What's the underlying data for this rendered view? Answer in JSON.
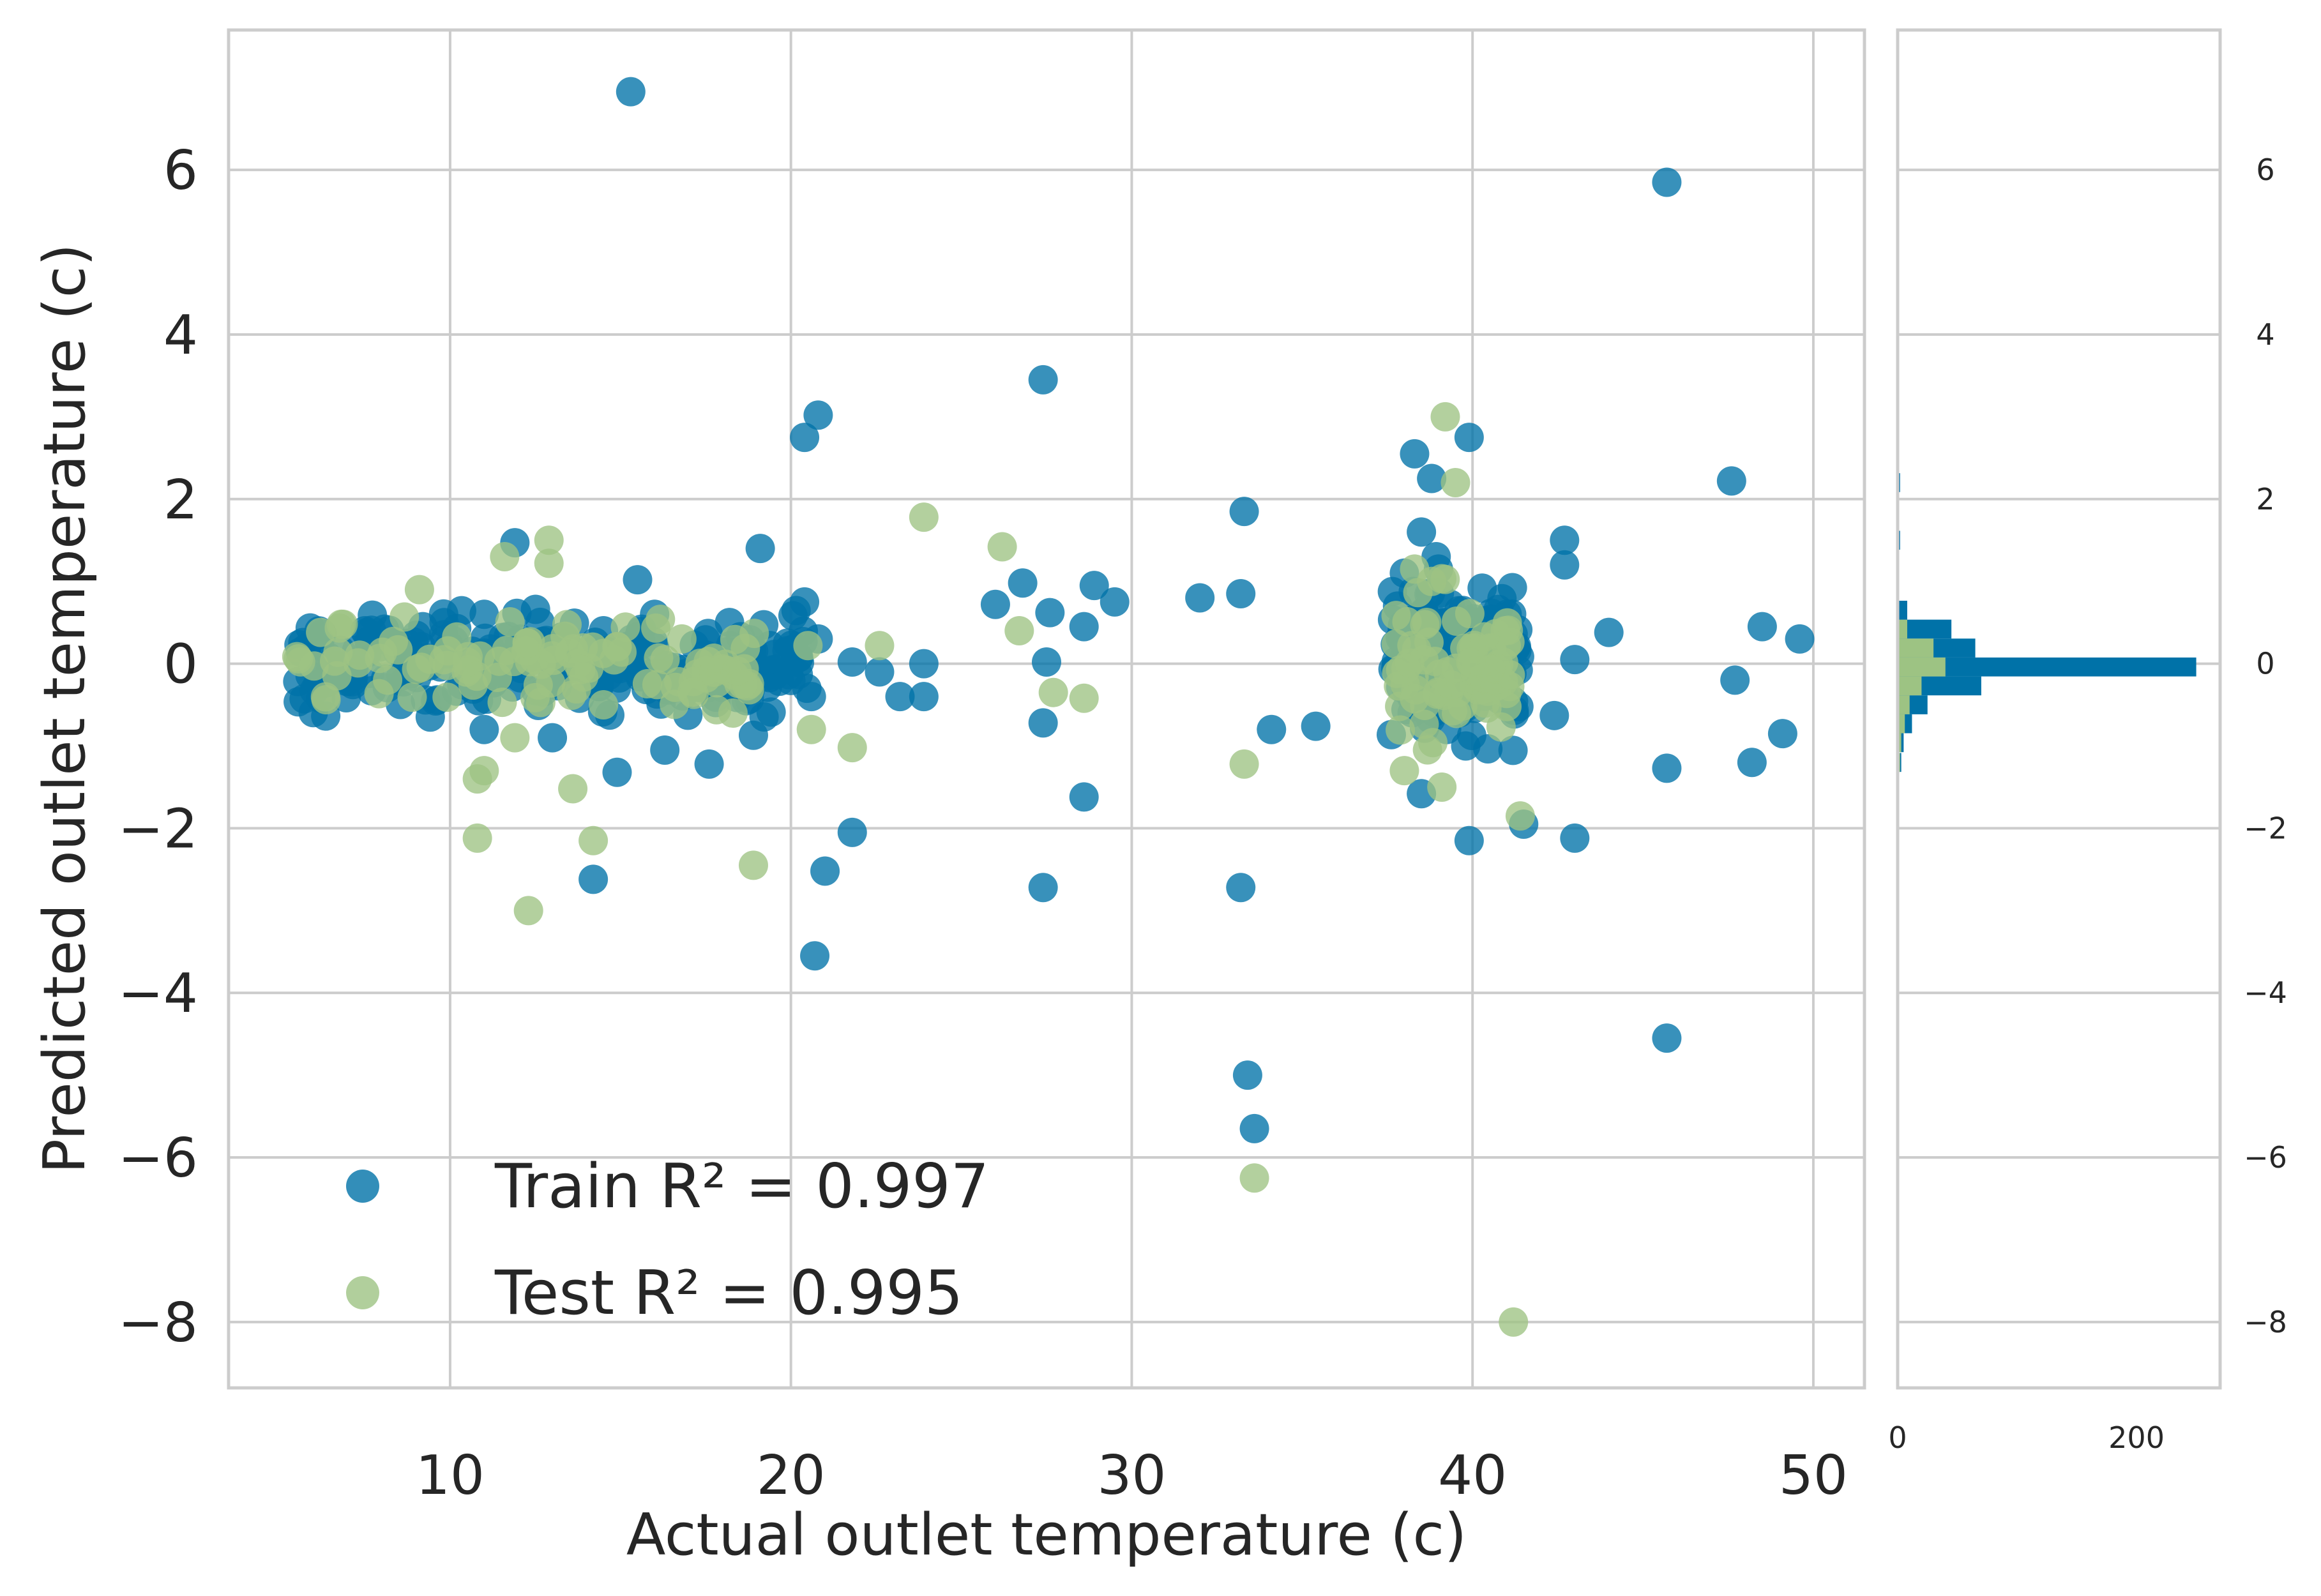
{
  "chart_data": {
    "type": "scatter",
    "xlabel": "Actual outlet temperature (c)",
    "ylabel": "Predicted outlet temperature (c)",
    "xlim": [
      3.5,
      51.5
    ],
    "ylim": [
      -8.8,
      7.7
    ],
    "x_ticks": [
      10,
      20,
      30,
      40,
      50
    ],
    "y_ticks": [
      6,
      4,
      2,
      0,
      -2,
      -4,
      -6,
      -8
    ],
    "x_tick_labels": [
      "10",
      "20",
      "30",
      "40",
      "50"
    ],
    "y_tick_labels": [
      "6",
      "4",
      "2",
      "0",
      "−2",
      "−4",
      "−6",
      "−8"
    ],
    "grid": true,
    "legend_position": "lower-left",
    "colors": {
      "train": "#0072a8",
      "test": "#9dc383"
    },
    "series": [
      {
        "name": "Train",
        "legend_label": "Train R² = 0.997",
        "r2": 0.997,
        "points": [
          [
            15.3,
            6.95
          ],
          [
            45.7,
            5.85
          ],
          [
            27.4,
            3.45
          ],
          [
            20.8,
            3.02
          ],
          [
            20.4,
            2.75
          ],
          [
            39.9,
            2.75
          ],
          [
            47.6,
            2.22
          ],
          [
            38.3,
            2.55
          ],
          [
            38.8,
            2.25
          ],
          [
            33.3,
            1.85
          ],
          [
            11.9,
            1.47
          ],
          [
            42.7,
            1.5
          ],
          [
            42.7,
            1.2
          ],
          [
            19.1,
            1.4
          ],
          [
            15.5,
            1.02
          ],
          [
            26.8,
            0.98
          ],
          [
            28.9,
            0.95
          ],
          [
            26.0,
            0.72
          ],
          [
            29.5,
            0.75
          ],
          [
            33.2,
            0.85
          ],
          [
            32.0,
            0.8
          ],
          [
            27.6,
            0.62
          ],
          [
            28.6,
            0.45
          ],
          [
            20.4,
            0.75
          ],
          [
            44.0,
            0.38
          ],
          [
            48.5,
            0.45
          ],
          [
            49.6,
            0.3
          ],
          [
            43.0,
            0.05
          ],
          [
            27.5,
            0.02
          ],
          [
            21.8,
            0.02
          ],
          [
            23.9,
            0.0
          ],
          [
            22.6,
            -0.1
          ],
          [
            23.2,
            -0.4
          ],
          [
            23.9,
            -0.4
          ],
          [
            20.6,
            -0.4
          ],
          [
            47.7,
            -0.2
          ],
          [
            49.1,
            -0.85
          ],
          [
            48.2,
            -1.2
          ],
          [
            45.7,
            -1.27
          ],
          [
            42.4,
            -0.63
          ],
          [
            27.4,
            -0.72
          ],
          [
            34.1,
            -0.8
          ],
          [
            35.4,
            -0.76
          ],
          [
            28.6,
            -1.62
          ],
          [
            21.8,
            -2.05
          ],
          [
            21.0,
            -2.52
          ],
          [
            27.4,
            -2.72
          ],
          [
            33.2,
            -2.72
          ],
          [
            14.2,
            -2.62
          ],
          [
            39.9,
            -2.15
          ],
          [
            41.5,
            -1.95
          ],
          [
            43.0,
            -2.12
          ],
          [
            20.7,
            -3.55
          ],
          [
            33.4,
            -5.0
          ],
          [
            33.6,
            -5.65
          ],
          [
            45.7,
            -4.55
          ],
          [
            38.5,
            -1.58
          ],
          [
            11.0,
            -0.8
          ],
          [
            13.0,
            -0.9
          ],
          [
            14.9,
            -1.32
          ],
          [
            16.3,
            -1.05
          ],
          [
            17.6,
            -1.22
          ],
          [
            18.9,
            -0.87
          ],
          [
            9.2,
            0.45
          ],
          [
            11.0,
            0.6
          ],
          [
            12.5,
            0.25
          ],
          [
            14.5,
            0.4
          ],
          [
            16.0,
            0.6
          ],
          [
            18.2,
            0.5
          ],
          [
            19.9,
            0.25
          ],
          [
            20.8,
            0.3
          ],
          [
            6.2,
            -0.42
          ],
          [
            7.5,
            0.4
          ],
          [
            38.0,
            1.1
          ],
          [
            38.5,
            1.6
          ],
          [
            39.0,
            1.15
          ],
          [
            37.8,
            0.7
          ],
          [
            39.5,
            0.5
          ],
          [
            40.5,
            0.4
          ],
          [
            41.0,
            -0.5
          ],
          [
            38.2,
            -0.4
          ],
          [
            39.8,
            -1.0
          ]
        ],
        "clusters": [
          {
            "x_range": [
              5.5,
              20.5
            ],
            "y_mean": 0.0,
            "y_spread": 0.28,
            "count": 260
          },
          {
            "x_range": [
              37.6,
              41.4
            ],
            "y_mean": 0.1,
            "y_spread": 0.45,
            "count": 150
          }
        ]
      },
      {
        "name": "Test",
        "legend_label": "Test R² = 0.995",
        "r2": 0.995,
        "points": [
          [
            39.2,
            3.0
          ],
          [
            39.5,
            2.2
          ],
          [
            23.9,
            1.78
          ],
          [
            26.2,
            1.42
          ],
          [
            12.9,
            1.5
          ],
          [
            12.9,
            1.22
          ],
          [
            11.6,
            1.3
          ],
          [
            9.1,
            0.9
          ],
          [
            26.7,
            0.4
          ],
          [
            6.2,
            0.38
          ],
          [
            22.6,
            0.22
          ],
          [
            20.5,
            0.22
          ],
          [
            27.7,
            -0.35
          ],
          [
            28.6,
            -0.42
          ],
          [
            20.6,
            -0.8
          ],
          [
            11.9,
            -0.9
          ],
          [
            21.8,
            -1.02
          ],
          [
            10.8,
            -1.4
          ],
          [
            11.0,
            -1.3
          ],
          [
            13.6,
            -1.52
          ],
          [
            10.8,
            -2.12
          ],
          [
            14.2,
            -2.15
          ],
          [
            18.9,
            -2.45
          ],
          [
            12.3,
            -3.0
          ],
          [
            33.3,
            -1.22
          ],
          [
            33.6,
            -6.25
          ],
          [
            41.2,
            -8.0
          ],
          [
            41.4,
            -1.85
          ],
          [
            38.3,
            1.15
          ],
          [
            38.8,
            1.0
          ],
          [
            38.0,
            -1.3
          ],
          [
            39.1,
            -1.5
          ],
          [
            16.8,
            0.3
          ],
          [
            18.3,
            -0.6
          ],
          [
            14.5,
            -0.5
          ]
        ],
        "clusters": [
          {
            "x_range": [
              5.5,
              19.0
            ],
            "y_mean": -0.05,
            "y_spread": 0.25,
            "count": 110
          },
          {
            "x_range": [
              37.7,
              41.2
            ],
            "y_mean": -0.1,
            "y_spread": 0.45,
            "count": 80
          }
        ]
      }
    ],
    "marginal_histogram": {
      "orientation": "horizontal",
      "x_ticks": [
        0,
        200
      ],
      "x_tick_labels": [
        "0",
        "200"
      ],
      "xlim": [
        0,
        270
      ],
      "y_ticks": [
        6,
        4,
        2,
        0,
        -2,
        -4,
        -6,
        -8
      ],
      "y_tick_labels": [
        "6",
        "4",
        "2",
        "0",
        "−2",
        "−4",
        "−6",
        "−8"
      ],
      "bin_width": 0.23,
      "train_bins": [
        [
          2.2,
          2
        ],
        [
          1.5,
          2
        ],
        [
          0.65,
          8
        ],
        [
          0.42,
          45
        ],
        [
          0.19,
          65
        ],
        [
          -0.04,
          250
        ],
        [
          -0.27,
          70
        ],
        [
          -0.5,
          25
        ],
        [
          -0.73,
          12
        ],
        [
          -0.96,
          5
        ],
        [
          -1.2,
          3
        ],
        [
          -2.1,
          1
        ]
      ],
      "test_bins": [
        [
          0.42,
          8
        ],
        [
          0.19,
          30
        ],
        [
          -0.04,
          40
        ],
        [
          -0.27,
          20
        ],
        [
          -0.5,
          10
        ],
        [
          -0.73,
          6
        ],
        [
          -0.96,
          3
        ],
        [
          -1.2,
          2
        ]
      ]
    }
  }
}
